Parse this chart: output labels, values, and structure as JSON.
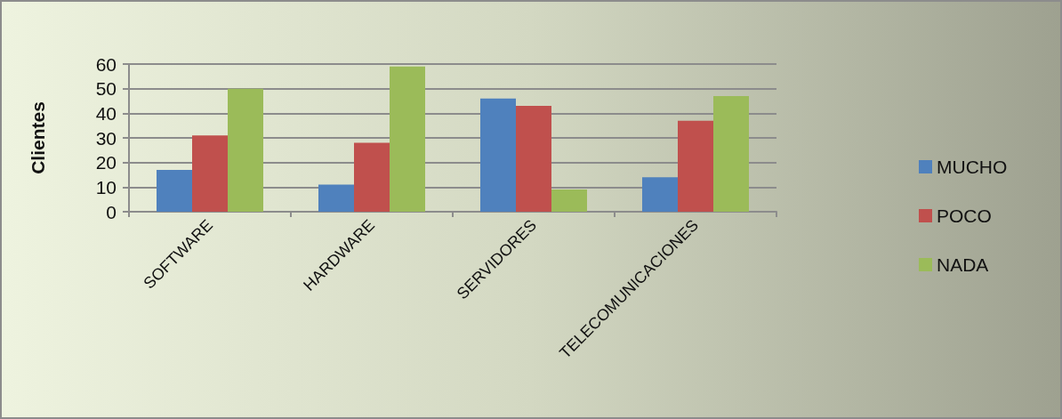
{
  "chart_data": {
    "type": "bar",
    "ylabel": "Clientes",
    "categories": [
      "SOFTWARE",
      "HARDWARE",
      "SERVIDORES",
      "TELECOMUNICACIONES"
    ],
    "series": [
      {
        "name": "MUCHO",
        "color": "#4f81bd",
        "values": [
          17,
          11,
          46,
          14
        ]
      },
      {
        "name": "POCO",
        "color": "#c0504d",
        "values": [
          31,
          28,
          43,
          37
        ]
      },
      {
        "name": "NADA",
        "color": "#9bbb59",
        "values": [
          50,
          59,
          9,
          47
        ]
      }
    ],
    "ylim": [
      0,
      60
    ],
    "yticks": [
      0,
      10,
      20,
      30,
      40,
      50,
      60
    ],
    "grid": "y",
    "legend": "right"
  }
}
